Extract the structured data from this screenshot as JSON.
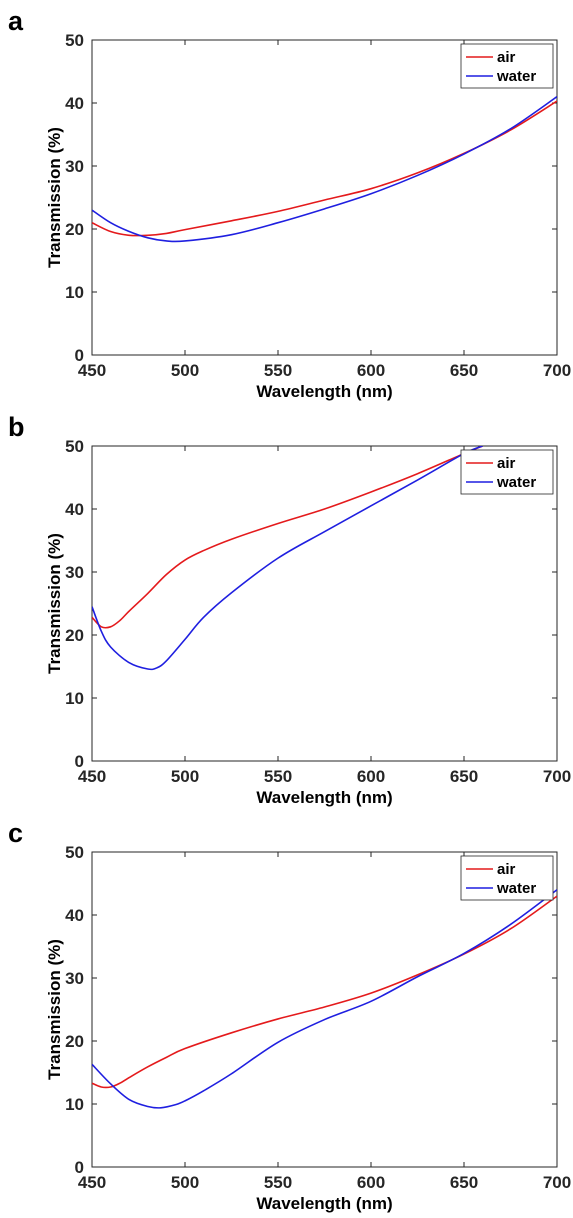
{
  "chart_data": [
    {
      "panel_label": "a",
      "type": "line",
      "xlabel": "Wavelength (nm)",
      "ylabel": "Transmission (%)",
      "xlim": [
        450,
        700
      ],
      "ylim": [
        0,
        50
      ],
      "xticks": [
        "450",
        "500",
        "550",
        "600",
        "650",
        "700"
      ],
      "yticks": [
        "0",
        "10",
        "20",
        "30",
        "40",
        "50"
      ],
      "legend_position": "top-right",
      "legend_boxed": true,
      "series": [
        {
          "name": "air",
          "color": "#e41a1c",
          "x": [
            450,
            460,
            470,
            480,
            490,
            500,
            525,
            550,
            575,
            600,
            625,
            650,
            675,
            700
          ],
          "y": [
            21.0,
            19.6,
            19.0,
            19.0,
            19.3,
            19.9,
            21.3,
            22.8,
            24.6,
            26.4,
            28.9,
            32.0,
            35.7,
            40.3
          ]
        },
        {
          "name": "water",
          "color": "#1f1fe0",
          "x": [
            450,
            460,
            470,
            480,
            490,
            500,
            525,
            550,
            575,
            600,
            625,
            650,
            675,
            700
          ],
          "y": [
            23.0,
            21.0,
            19.6,
            18.6,
            18.1,
            18.1,
            19.1,
            21.0,
            23.2,
            25.6,
            28.5,
            31.9,
            35.9,
            41.0
          ]
        }
      ]
    },
    {
      "panel_label": "b",
      "type": "line",
      "xlabel": "Wavelength (nm)",
      "ylabel": "Transmission (%)",
      "xlim": [
        450,
        700
      ],
      "ylim": [
        0,
        50
      ],
      "xticks": [
        "450",
        "500",
        "550",
        "600",
        "650",
        "700"
      ],
      "yticks": [
        "0",
        "10",
        "20",
        "30",
        "40",
        "50"
      ],
      "legend_position": "top-right",
      "legend_boxed": true,
      "series": [
        {
          "name": "air",
          "color": "#e41a1c",
          "x": [
            450,
            455,
            460,
            465,
            470,
            480,
            490,
            500,
            510,
            525,
            550,
            575,
            600,
            625,
            650,
            660
          ],
          "y": [
            22.8,
            21.3,
            21.3,
            22.3,
            23.8,
            26.6,
            29.6,
            31.9,
            33.4,
            35.2,
            37.7,
            40.0,
            42.7,
            45.6,
            48.8,
            50.0
          ]
        },
        {
          "name": "water",
          "color": "#1f1fe0",
          "x": [
            450,
            455,
            460,
            470,
            480,
            485,
            490,
            500,
            510,
            525,
            550,
            575,
            600,
            625,
            650,
            660
          ],
          "y": [
            24.5,
            20.6,
            18.1,
            15.6,
            14.6,
            14.8,
            15.9,
            19.3,
            22.8,
            26.7,
            32.2,
            36.4,
            40.5,
            44.6,
            48.8,
            50.0
          ]
        }
      ]
    },
    {
      "panel_label": "c",
      "type": "line",
      "xlabel": "Wavelength (nm)",
      "ylabel": "Transmission (%)",
      "xlim": [
        450,
        700
      ],
      "ylim": [
        0,
        50
      ],
      "xticks": [
        "450",
        "500",
        "550",
        "600",
        "650",
        "700"
      ],
      "yticks": [
        "0",
        "10",
        "20",
        "30",
        "40",
        "50"
      ],
      "legend_position": "top-right",
      "legend_boxed": true,
      "series": [
        {
          "name": "air",
          "color": "#e41a1c",
          "x": [
            450,
            455,
            460,
            465,
            470,
            480,
            490,
            500,
            525,
            550,
            575,
            600,
            625,
            650,
            675,
            700
          ],
          "y": [
            13.3,
            12.7,
            12.7,
            13.3,
            14.2,
            15.9,
            17.4,
            18.8,
            21.3,
            23.5,
            25.4,
            27.6,
            30.5,
            33.8,
            37.8,
            43.0
          ]
        },
        {
          "name": "water",
          "color": "#1f1fe0",
          "x": [
            450,
            460,
            470,
            480,
            487,
            495,
            500,
            510,
            525,
            550,
            575,
            600,
            625,
            650,
            675,
            700
          ],
          "y": [
            16.3,
            13.2,
            10.7,
            9.6,
            9.4,
            9.9,
            10.5,
            12.1,
            14.8,
            19.8,
            23.4,
            26.3,
            30.2,
            33.9,
            38.5,
            44.0
          ]
        }
      ]
    }
  ]
}
